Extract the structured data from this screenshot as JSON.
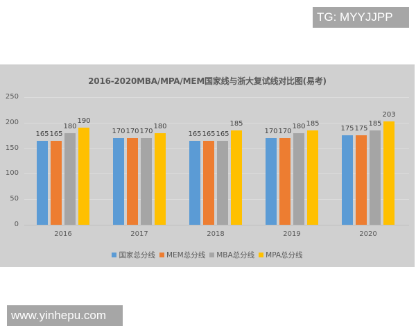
{
  "watermarks": {
    "top": "TG: MYYJJPP",
    "bottom": "www.yinhepu.com"
  },
  "chart_data": {
    "type": "bar",
    "title": "2016-2020MBA/MPA/MEM国家线与浙大复试线对比图(易考)",
    "xlabel": "",
    "ylabel": "",
    "ylim": [
      0,
      250
    ],
    "yticks": [
      0,
      50,
      100,
      150,
      200,
      250
    ],
    "grid": true,
    "legend_position": "bottom",
    "categories": [
      "2016",
      "2017",
      "2018",
      "2019",
      "2020"
    ],
    "series": [
      {
        "name": "国家总分线",
        "color": "#5B9BD5",
        "values": [
          165,
          170,
          165,
          170,
          175
        ]
      },
      {
        "name": "MEM总分线",
        "color": "#ED7D31",
        "values": [
          165,
          170,
          165,
          170,
          175
        ]
      },
      {
        "name": "MBA总分线",
        "color": "#A5A5A5",
        "values": [
          180,
          170,
          165,
          180,
          185
        ]
      },
      {
        "name": "MPA总分线",
        "color": "#FFC000",
        "values": [
          190,
          180,
          185,
          185,
          203
        ]
      }
    ],
    "data_labels": true
  }
}
